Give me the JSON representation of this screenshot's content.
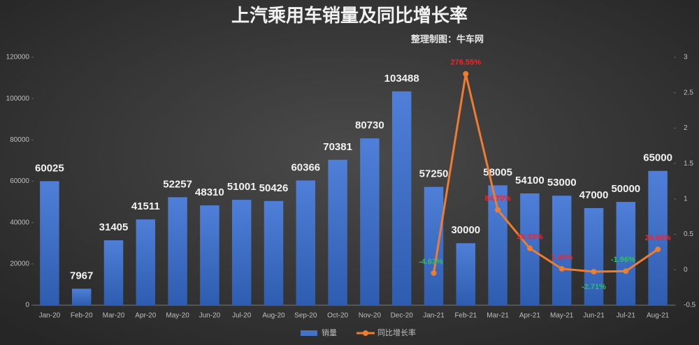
{
  "chart_data": {
    "type": "bar_line",
    "title": "上汽乘用车销量及同比增长率",
    "subtitle": "整理制图：牛车网",
    "categories": [
      "Jan-20",
      "Feb-20",
      "Mar-20",
      "Apr-20",
      "May-20",
      "Jun-20",
      "Jul-20",
      "Aug-20",
      "Sep-20",
      "Oct-20",
      "Nov-20",
      "Dec-20",
      "Jan-21",
      "Feb-21",
      "Mar-21",
      "Apr-21",
      "May-21",
      "Jun-21",
      "Jul-21",
      "Aug-21"
    ],
    "series": [
      {
        "name": "销量",
        "type": "bar",
        "color": "#4472c4",
        "values": [
          60025,
          7967,
          31405,
          41511,
          52257,
          48310,
          51001,
          50426,
          60366,
          70381,
          80730,
          103488,
          57250,
          30000,
          58005,
          54100,
          53000,
          47000,
          50000,
          65000
        ]
      },
      {
        "name": "同比增长率",
        "type": "line",
        "axis": "y2",
        "color": "#ed7d31",
        "values": [
          null,
          null,
          null,
          null,
          null,
          null,
          null,
          null,
          null,
          null,
          null,
          null,
          -0.0463,
          2.7655,
          0.847,
          0.3033,
          0.0142,
          -0.0271,
          -0.0196,
          0.289
        ],
        "value_labels": [
          null,
          null,
          null,
          null,
          null,
          null,
          null,
          null,
          null,
          null,
          null,
          null,
          "-4.63%",
          "276.55%",
          "84.70%",
          "30.33%",
          "1.42%",
          "-2.71%",
          "-1.96%",
          "28.90%"
        ]
      }
    ],
    "ylim": [
      0,
      120000
    ],
    "yticks": [
      0,
      20000,
      40000,
      60000,
      80000,
      100000,
      120000
    ],
    "y2lim": [
      -0.5,
      3
    ],
    "y2ticks": [
      -0.5,
      0,
      0.5,
      1,
      1.5,
      2,
      2.5,
      3
    ],
    "legend": "bottom"
  }
}
